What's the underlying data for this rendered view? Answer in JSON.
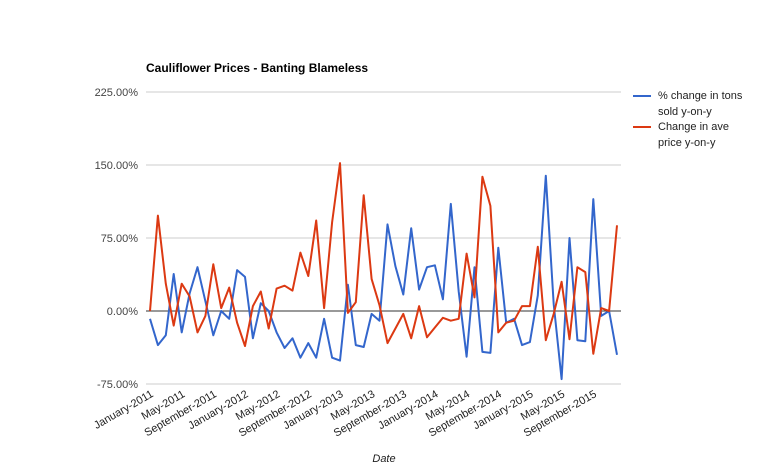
{
  "chart_data": {
    "type": "line",
    "title": "Cauliflower Prices - Banting Blameless",
    "xlabel": "Date",
    "ylabel": "",
    "ylim": [
      -75,
      225
    ],
    "yticks": [
      "225.00%",
      "150.00%",
      "75.00%",
      "0.00%",
      "-75.00%"
    ],
    "ytick_values": [
      225,
      150,
      75,
      0,
      -75
    ],
    "x_tick_labels": [
      "January-2011",
      "May-2011",
      "September-2011",
      "January-2012",
      "May-2012",
      "September-2012",
      "January-2013",
      "May-2013",
      "September-2013",
      "January-2014",
      "May-2014",
      "September-2014",
      "January-2015",
      "May-2015",
      "September-2015"
    ],
    "x_tick_index": [
      0,
      4,
      8,
      12,
      16,
      20,
      24,
      28,
      32,
      36,
      40,
      44,
      48,
      52,
      56
    ],
    "num_points": 60,
    "grid": true,
    "legend_position": "right",
    "series": [
      {
        "name": "% change in tons sold y-on-y",
        "color": "#3366cc",
        "values": [
          -8,
          -35,
          -25,
          38,
          -22,
          18,
          45,
          10,
          -25,
          0,
          -8,
          42,
          35,
          -28,
          8,
          0,
          -22,
          -38,
          -28,
          -48,
          -33,
          -48,
          -8,
          -48,
          -51,
          27,
          -35,
          -37,
          -3,
          -10,
          89,
          46,
          17,
          85,
          22,
          45,
          47,
          12,
          110,
          20,
          -47,
          45,
          -42,
          -43,
          65,
          -12,
          -8,
          -35,
          -32,
          16,
          139,
          7,
          -70,
          75,
          -30,
          -31,
          115,
          -5,
          0,
          -45
        ]
      },
      {
        "name": "Change in ave price y-on-y",
        "color": "#dc3912",
        "values": [
          0,
          98,
          28,
          -15,
          28,
          15,
          -22,
          -5,
          48,
          3,
          24,
          -12,
          -36,
          5,
          20,
          -18,
          23,
          26,
          21,
          60,
          36,
          93,
          3,
          91,
          152,
          -2,
          9,
          119,
          33,
          6,
          -33,
          -18,
          -3,
          -28,
          5,
          -27,
          -17,
          -7,
          -10,
          -8,
          59,
          14,
          138,
          108,
          -22,
          -12,
          -10,
          5,
          5,
          66,
          -30,
          -3,
          30,
          -29,
          45,
          40,
          -44,
          3,
          0,
          88
        ]
      }
    ]
  }
}
